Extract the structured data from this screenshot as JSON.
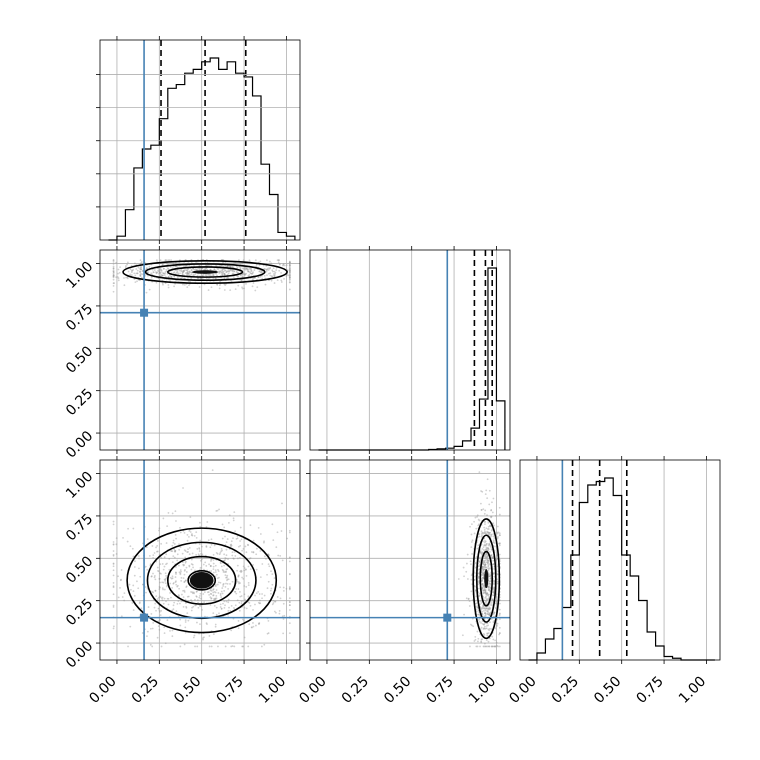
{
  "chart_data": {
    "type": "corner",
    "parameters": 3,
    "param_ranges": [
      [
        -0.1,
        1.08
      ],
      [
        -0.1,
        1.08
      ],
      [
        -0.1,
        1.08
      ]
    ],
    "ticks": [
      0.0,
      0.25,
      0.5,
      0.75,
      1.0
    ],
    "tick_labels": [
      "0.00",
      "0.25",
      "0.50",
      "0.75",
      "1.00"
    ],
    "grid": true,
    "colors": {
      "truth": "#4682b4",
      "hist": "#000000",
      "scatter": "#9a9a9a"
    },
    "truths": [
      0.16,
      0.71,
      0.15
    ],
    "quantiles": [
      [
        0.26,
        0.52,
        0.76
      ],
      [
        0.87,
        0.935,
        0.975
      ],
      [
        0.21,
        0.37,
        0.53
      ]
    ],
    "histograms": [
      {
        "edges": [
          -0.05,
          0.0,
          0.05,
          0.1,
          0.15,
          0.2,
          0.25,
          0.3,
          0.35,
          0.4,
          0.45,
          0.5,
          0.55,
          0.6,
          0.65,
          0.7,
          0.75,
          0.8,
          0.85,
          0.9,
          0.95,
          1.0,
          1.05
        ],
        "counts": [
          0,
          1,
          8,
          19,
          24,
          25,
          32,
          40,
          41,
          44,
          45,
          47,
          48,
          45,
          47,
          44,
          43,
          38,
          20,
          12,
          2,
          1
        ]
      },
      {
        "edges": [
          -0.05,
          0.0,
          0.05,
          0.1,
          0.15,
          0.2,
          0.25,
          0.3,
          0.35,
          0.4,
          0.45,
          0.5,
          0.55,
          0.6,
          0.65,
          0.7,
          0.75,
          0.8,
          0.85,
          0.9,
          0.95,
          1.0,
          1.05
        ],
        "counts": [
          0,
          0,
          0,
          0,
          0,
          0,
          0,
          0,
          0,
          0,
          0,
          0,
          0,
          0.3,
          0.6,
          1,
          2,
          5,
          12,
          28,
          100,
          27
        ]
      },
      {
        "edges": [
          -0.05,
          0.0,
          0.05,
          0.1,
          0.15,
          0.2,
          0.25,
          0.3,
          0.35,
          0.4,
          0.45,
          0.5,
          0.55,
          0.6,
          0.65,
          0.7,
          0.75,
          0.8,
          0.85,
          0.9,
          0.95,
          1.0,
          1.05
        ],
        "counts": [
          0,
          2,
          6,
          9,
          15,
          30,
          45,
          50,
          51,
          52,
          47,
          30,
          24,
          17,
          8,
          4,
          1,
          0.5,
          0,
          0,
          0,
          0
        ]
      }
    ],
    "contours": [
      {
        "params": [
          0,
          1
        ],
        "peak": [
          0.52,
          0.95
        ],
        "sigma": [
          0.22,
          0.03
        ],
        "levels": [
          1.0,
          1.6,
          2.2
        ]
      },
      {
        "params": [
          0,
          2
        ],
        "peak": [
          0.5,
          0.37
        ],
        "sigma": [
          0.2,
          0.14
        ],
        "levels": [
          0.4,
          1.0,
          1.6,
          2.2
        ]
      },
      {
        "params": [
          1,
          2
        ],
        "peak": [
          0.94,
          0.38
        ],
        "sigma": [
          0.035,
          0.16
        ],
        "levels": [
          1.0,
          1.6,
          2.2
        ]
      }
    ]
  }
}
